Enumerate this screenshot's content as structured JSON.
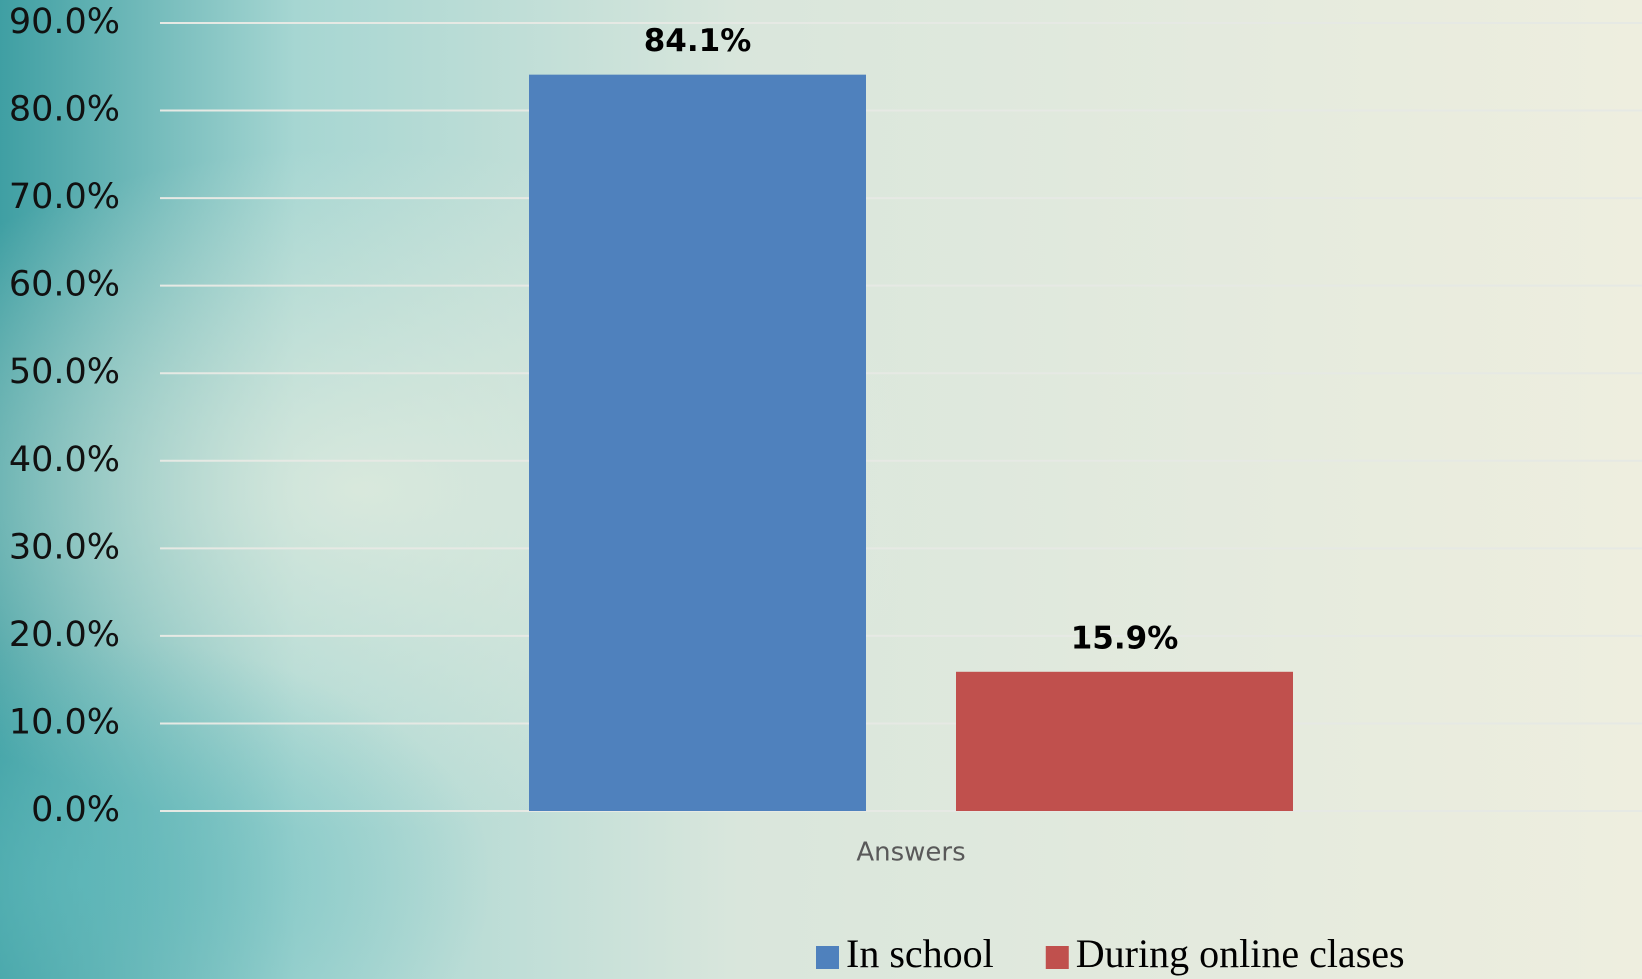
{
  "chart_data": {
    "type": "bar",
    "categories": [
      "Answers"
    ],
    "series": [
      {
        "name": "In school",
        "color": "#4f81bd",
        "values": [
          84.1
        ],
        "value_labels": [
          "84.1%"
        ]
      },
      {
        "name": "During online clases",
        "color": "#c0504d",
        "values": [
          15.9
        ],
        "value_labels": [
          "15.9%"
        ]
      }
    ],
    "ylim": [
      0,
      90
    ],
    "yticks": [
      {
        "value": 0,
        "label": "0.0%"
      },
      {
        "value": 10,
        "label": "10.0%"
      },
      {
        "value": 20,
        "label": "20.0%"
      },
      {
        "value": 30,
        "label": "30.0%"
      },
      {
        "value": 40,
        "label": "40.0%"
      },
      {
        "value": 50,
        "label": "50.0%"
      },
      {
        "value": 60,
        "label": "60.0%"
      },
      {
        "value": 70,
        "label": "70.0%"
      },
      {
        "value": 80,
        "label": "80.0%"
      },
      {
        "value": 90,
        "label": "90.0%"
      }
    ],
    "grid": true,
    "legend": "bottom"
  }
}
